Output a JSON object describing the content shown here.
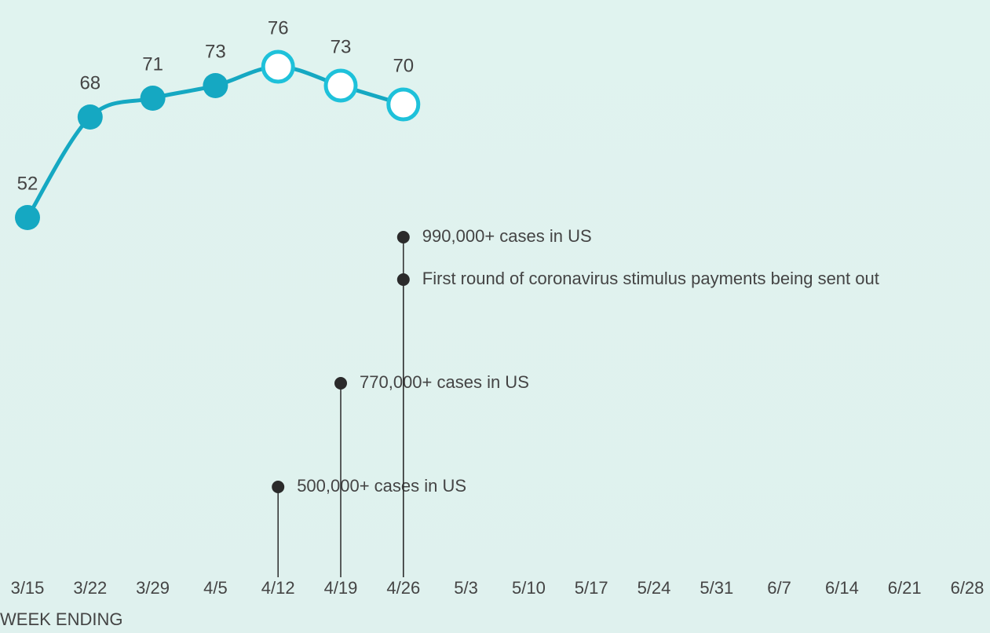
{
  "chart_data": {
    "type": "line",
    "categories": [
      "3/15",
      "3/22",
      "3/29",
      "4/5",
      "4/12",
      "4/19",
      "4/26",
      "5/3",
      "5/10",
      "5/17",
      "5/24",
      "5/31",
      "6/7",
      "6/14",
      "6/21",
      "6/28"
    ],
    "values": [
      52,
      68,
      71,
      73,
      76,
      73,
      70,
      null,
      null,
      null,
      null,
      null,
      null,
      null,
      null,
      null
    ],
    "point_styles": [
      "filled",
      "filled",
      "filled",
      "filled",
      "open",
      "open",
      "open",
      null,
      null,
      null,
      null,
      null,
      null,
      null,
      null,
      null
    ],
    "color": "#15a8c2",
    "open_color": "#1ec1da",
    "ylim": [
      40,
      80
    ],
    "xlabel": "WEEK ENDING",
    "annotations": [
      {
        "x": "4/12",
        "text": "500,000+ cases in US"
      },
      {
        "x": "4/19",
        "text": "770,000+ cases in US"
      },
      {
        "x": "4/26",
        "text": "First round of coronavirus stimulus payments being sent out"
      },
      {
        "x": "4/26",
        "text": "990,000+ cases in US"
      }
    ],
    "annotation_color": "#2b2b2b"
  }
}
